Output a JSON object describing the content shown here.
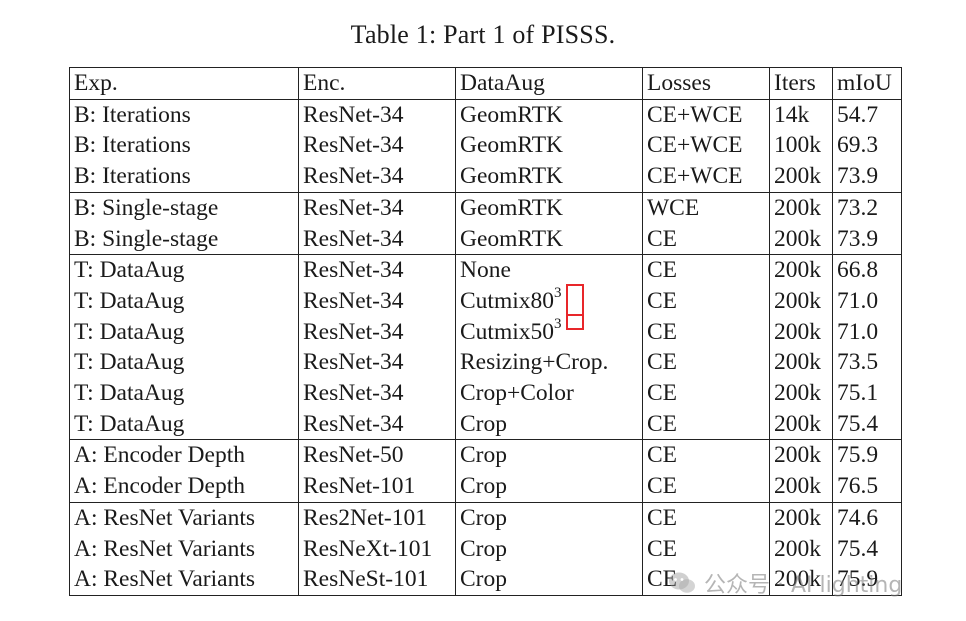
{
  "caption": "Table 1: Part 1 of PISSS.",
  "headers": [
    "Exp.",
    "Enc.",
    "DataAug",
    "Losses",
    "Iters",
    "mIoU"
  ],
  "groups": [
    [
      {
        "exp": "B: Iterations",
        "enc": "ResNet-34",
        "aug": "GeomRTK",
        "sup": "",
        "loss": "CE+WCE",
        "iters": "14k",
        "miou": "54.7",
        "best": false
      },
      {
        "exp": "B: Iterations",
        "enc": "ResNet-34",
        "aug": "GeomRTK",
        "sup": "",
        "loss": "CE+WCE",
        "iters": "100k",
        "miou": "69.3",
        "best": false
      },
      {
        "exp": "B: Iterations",
        "enc": "ResNet-34",
        "aug": "GeomRTK",
        "sup": "",
        "loss": "CE+WCE",
        "iters": "200k",
        "miou": "73.9",
        "best": true
      }
    ],
    [
      {
        "exp": "B: Single-stage",
        "enc": "ResNet-34",
        "aug": "GeomRTK",
        "sup": "",
        "loss": "WCE",
        "iters": "200k",
        "miou": "73.2",
        "best": false
      },
      {
        "exp": "B: Single-stage",
        "enc": "ResNet-34",
        "aug": "GeomRTK",
        "sup": "",
        "loss": "CE",
        "iters": "200k",
        "miou": "73.9",
        "best": true
      }
    ],
    [
      {
        "exp": "T: DataAug",
        "enc": "ResNet-34",
        "aug": "None",
        "sup": "",
        "loss": "CE",
        "iters": "200k",
        "miou": "66.8",
        "best": false
      },
      {
        "exp": "T: DataAug",
        "enc": "ResNet-34",
        "aug": "Cutmix80",
        "sup": "3",
        "loss": "CE",
        "iters": "200k",
        "miou": "71.0",
        "best": false
      },
      {
        "exp": "T: DataAug",
        "enc": "ResNet-34",
        "aug": "Cutmix50",
        "sup": "3",
        "loss": "CE",
        "iters": "200k",
        "miou": "71.0",
        "best": false
      },
      {
        "exp": "T: DataAug",
        "enc": "ResNet-34",
        "aug": "Resizing+Crop.",
        "sup": "",
        "loss": "CE",
        "iters": "200k",
        "miou": "73.5",
        "best": false
      },
      {
        "exp": "T: DataAug",
        "enc": "ResNet-34",
        "aug": "Crop+Color",
        "sup": "",
        "loss": "CE",
        "iters": "200k",
        "miou": "75.1",
        "best": false
      },
      {
        "exp": "T: DataAug",
        "enc": "ResNet-34",
        "aug": "Crop",
        "sup": "",
        "loss": "CE",
        "iters": "200k",
        "miou": "75.4",
        "best": true
      }
    ],
    [
      {
        "exp": "A: Encoder Depth",
        "enc": "ResNet-50",
        "aug": "Crop",
        "sup": "",
        "loss": "CE",
        "iters": "200k",
        "miou": "75.9",
        "best": false
      },
      {
        "exp": "A: Encoder Depth",
        "enc": "ResNet-101",
        "aug": "Crop",
        "sup": "",
        "loss": "CE",
        "iters": "200k",
        "miou": "76.5",
        "best": true
      }
    ],
    [
      {
        "exp": "A: ResNet Variants",
        "enc": "Res2Net-101",
        "aug": "Crop",
        "sup": "",
        "loss": "CE",
        "iters": "200k",
        "miou": "74.6",
        "best": false
      },
      {
        "exp": "A: ResNet Variants",
        "enc": "ResNeXt-101",
        "aug": "Crop",
        "sup": "",
        "loss": "CE",
        "iters": "200k",
        "miou": "75.4",
        "best": false
      },
      {
        "exp": "A: ResNet Variants",
        "enc": "ResNeSt-101",
        "aug": "Crop",
        "sup": "",
        "loss": "CE",
        "iters": "200k",
        "miou": "75.9",
        "best": false
      }
    ]
  ],
  "watermark": {
    "text": "公众号 · AI lighting",
    "icon": "wechat-logo-icon"
  },
  "highlight_color": "#e8262a"
}
